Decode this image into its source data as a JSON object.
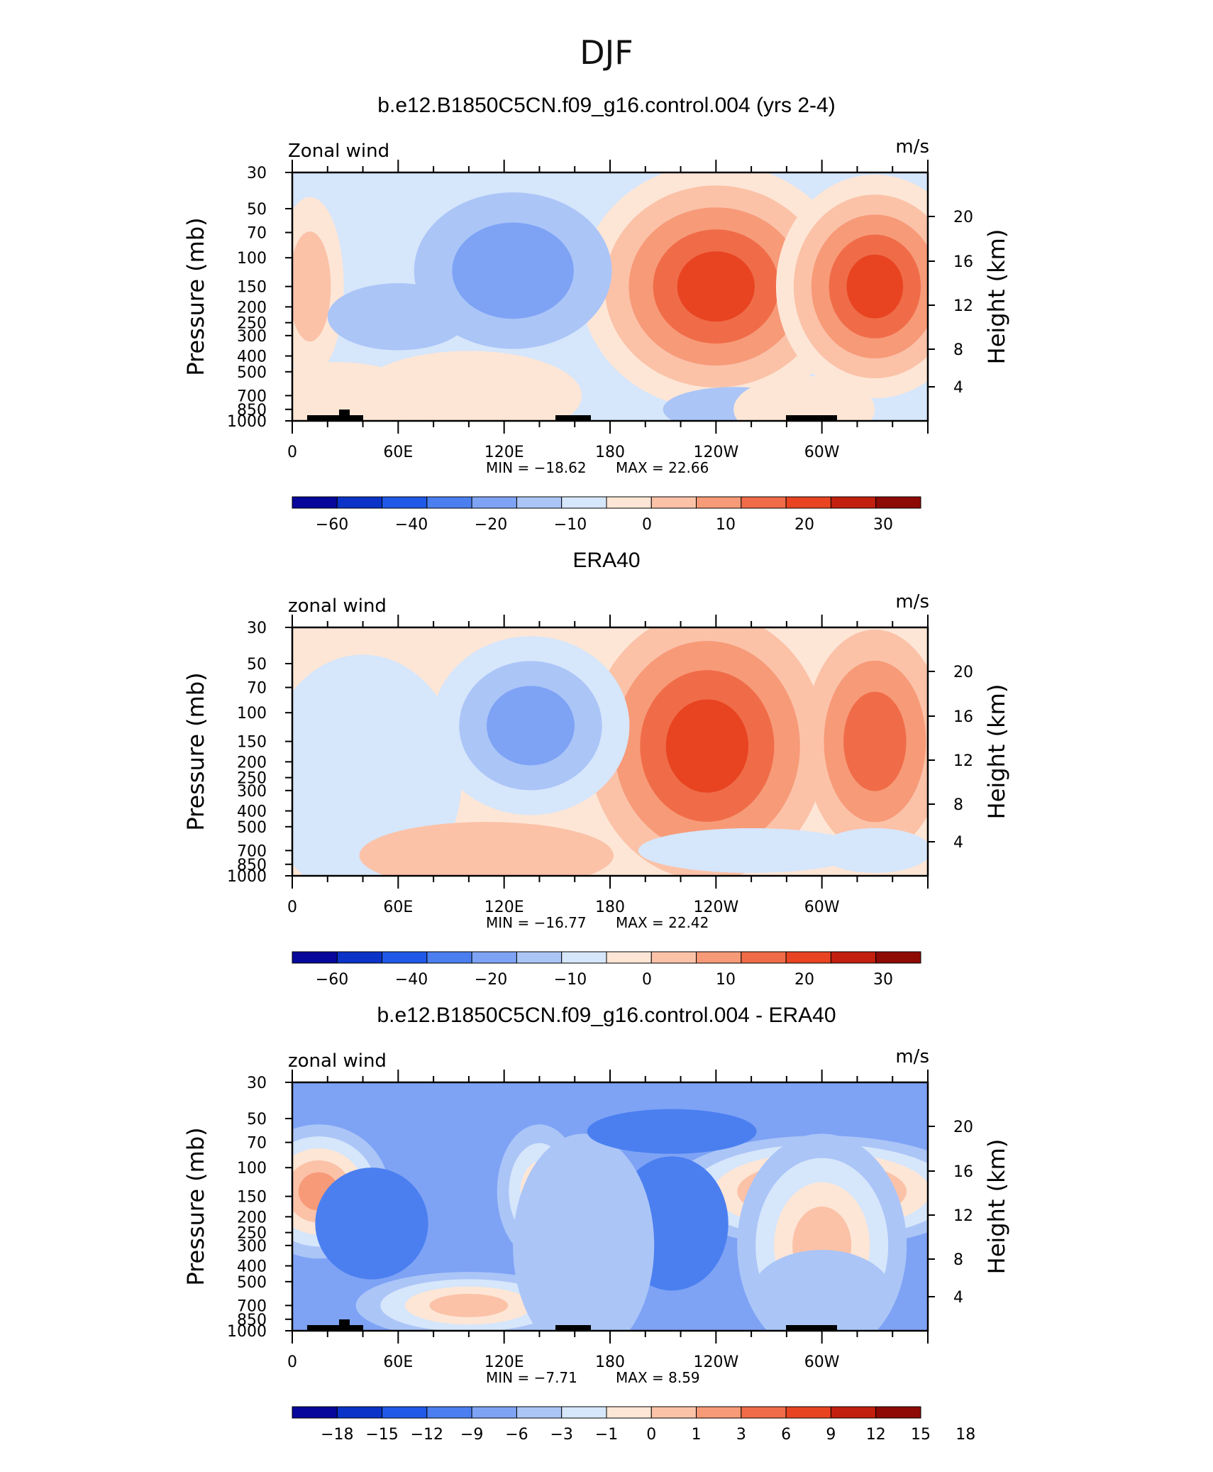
{
  "season_title": "DJF",
  "chart_data": [
    {
      "type": "heatmap",
      "title": "b.e12.B1850C5CN.f09_g16.control.004 (yrs 2-4)",
      "left_label": "Zonal wind",
      "units": "m/s",
      "ylabel": "Pressure (mb)",
      "ylabel2": "Height (km)",
      "xticks": [
        "0",
        "60E",
        "120E",
        "180",
        "120W",
        "60W"
      ],
      "yticks": [
        "30",
        "50",
        "70",
        "100",
        "150",
        "200",
        "250",
        "300",
        "400",
        "500",
        "700",
        "850",
        "1000"
      ],
      "y2ticks": [
        "4",
        "8",
        "12",
        "16",
        "20"
      ],
      "min_text": "MIN = −18.62",
      "max_text": "MAX =  22.66",
      "colorbar_labels": [
        "−60",
        "−40",
        "−20",
        "−10",
        "0",
        "10",
        "20",
        "30"
      ],
      "palette": [
        "#07079b",
        "#0b33c8",
        "#2058e8",
        "#4b7ff0",
        "#7ea3f5",
        "#abc5f7",
        "#d6e6fb",
        "#fde6d6",
        "#fbc2a8",
        "#f79a78",
        "#f06c48",
        "#e84422",
        "#c21f0e",
        "#8e0a05"
      ],
      "min": -18.62,
      "max": 22.66,
      "bg": 6,
      "blobs": [
        {
          "lon": 240,
          "p": 150,
          "w": 48,
          "h": 0.55,
          "lvl": 11
        },
        {
          "lon": 330,
          "p": 150,
          "w": 35,
          "h": 0.5,
          "lvl": 11
        },
        {
          "lon": 125,
          "p": 120,
          "w": 35,
          "h": 0.35,
          "lvl": 4
        },
        {
          "lon": 10,
          "p": 150,
          "w": 12,
          "h": 0.4,
          "lvl": 8
        },
        {
          "lon": 25,
          "p": 700,
          "w": 30,
          "h": 0.15,
          "lvl": 7
        },
        {
          "lon": 100,
          "p": 700,
          "w": 40,
          "h": 0.2,
          "lvl": 7
        },
        {
          "lon": 60,
          "p": 230,
          "w": 25,
          "h": 0.15,
          "lvl": 5
        },
        {
          "lon": 250,
          "p": 850,
          "w": 25,
          "h": 0.1,
          "lvl": 5
        },
        {
          "lon": 290,
          "p": 850,
          "w": 25,
          "h": 0.15,
          "lvl": 7
        }
      ],
      "fill_start": [
        6,
        6,
        6,
        7,
        7,
        7,
        7,
        7,
        7,
        7,
        7
      ]
    },
    {
      "type": "heatmap",
      "title": "ERA40",
      "left_label": "zonal wind",
      "units": "m/s",
      "ylabel": "Pressure (mb)",
      "ylabel2": "Height (km)",
      "xticks": [
        "0",
        "60E",
        "120E",
        "180",
        "120W",
        "60W"
      ],
      "yticks": [
        "30",
        "50",
        "70",
        "100",
        "150",
        "200",
        "250",
        "300",
        "400",
        "500",
        "700",
        "850",
        "1000"
      ],
      "y2ticks": [
        "4",
        "8",
        "12",
        "16",
        "20"
      ],
      "min_text": "MIN = −16.77",
      "max_text": "MAX =  22.42",
      "colorbar_labels": [
        "−60",
        "−40",
        "−20",
        "−10",
        "0",
        "10",
        "20",
        "30"
      ],
      "palette": [
        "#07079b",
        "#0b33c8",
        "#2058e8",
        "#4b7ff0",
        "#7ea3f5",
        "#abc5f7",
        "#d6e6fb",
        "#fde6d6",
        "#fbc2a8",
        "#f79a78",
        "#f06c48",
        "#e84422",
        "#c21f0e",
        "#8e0a05"
      ],
      "min": -16.77,
      "max": 22.42,
      "bg": 7,
      "blobs": [
        {
          "lon": 235,
          "p": 160,
          "w": 42,
          "h": 0.6,
          "lvl": 11
        },
        {
          "lon": 330,
          "p": 150,
          "w": 25,
          "h": 0.5,
          "lvl": 10
        },
        {
          "lon": 135,
          "p": 120,
          "w": 35,
          "h": 0.4,
          "lvl": 4
        },
        {
          "lon": 40,
          "p": 250,
          "w": 35,
          "h": 0.55,
          "lvl": 6
        },
        {
          "lon": 110,
          "p": 750,
          "w": 45,
          "h": 0.15,
          "lvl": 8
        },
        {
          "lon": 260,
          "p": 700,
          "w": 40,
          "h": 0.1,
          "lvl": 6
        },
        {
          "lon": 330,
          "p": 700,
          "w": 20,
          "h": 0.1,
          "lvl": 6
        }
      ],
      "fill_start": [
        7,
        7,
        7,
        7,
        7,
        7,
        7,
        7,
        7,
        7,
        7
      ]
    },
    {
      "type": "heatmap",
      "title": "b.e12.B1850C5CN.f09_g16.control.004 - ERA40",
      "left_label": "zonal wind",
      "units": "m/s",
      "ylabel": "Pressure (mb)",
      "ylabel2": "Height (km)",
      "xticks": [
        "0",
        "60E",
        "120E",
        "180",
        "120W",
        "60W"
      ],
      "yticks": [
        "30",
        "50",
        "70",
        "100",
        "150",
        "200",
        "250",
        "300",
        "400",
        "500",
        "700",
        "850",
        "1000"
      ],
      "y2ticks": [
        "4",
        "8",
        "12",
        "16",
        "20"
      ],
      "min_text": "MIN =   −7.71",
      "max_text": "MAX =    8.59",
      "colorbar_labels": [
        "−18",
        "−15",
        "−12",
        "−9",
        "−6",
        "−3",
        "−1",
        "0",
        "1",
        "3",
        "6",
        "9",
        "12",
        "15",
        "18"
      ],
      "palette": [
        "#07079b",
        "#0b33c8",
        "#2058e8",
        "#4b7ff0",
        "#7ea3f5",
        "#abc5f7",
        "#d6e6fb",
        "#fde6d6",
        "#fbc2a8",
        "#f79a78",
        "#f06c48",
        "#e84422",
        "#c21f0e",
        "#8e0a05"
      ],
      "min": -7.71,
      "max": 8.59,
      "bg": 4,
      "blobs": [
        {
          "lon": 300,
          "p": 140,
          "w": 55,
          "h": 0.25,
          "lvl": 10
        },
        {
          "lon": 15,
          "p": 140,
          "w": 25,
          "h": 0.3,
          "lvl": 9
        },
        {
          "lon": 140,
          "p": 140,
          "w": 15,
          "h": 0.3,
          "lvl": 7
        },
        {
          "lon": 215,
          "p": 220,
          "w": 20,
          "h": 0.3,
          "lvl": 3
        },
        {
          "lon": 45,
          "p": 220,
          "w": 20,
          "h": 0.25,
          "lvl": 3
        },
        {
          "lon": 100,
          "p": 700,
          "w": 40,
          "h": 0.15,
          "lvl": 8
        },
        {
          "lon": 300,
          "p": 300,
          "w": 30,
          "h": 0.5,
          "lvl": 8
        },
        {
          "lon": 165,
          "p": 300,
          "w": 25,
          "h": 0.5,
          "lvl": 5
        },
        {
          "lon": 215,
          "p": 60,
          "w": 30,
          "h": 0.1,
          "lvl": 3
        },
        {
          "lon": 300,
          "p": 600,
          "w": 25,
          "h": 0.2,
          "lvl": 5
        }
      ],
      "fill_start": [
        4,
        4,
        5,
        5,
        6,
        7,
        8,
        8,
        9,
        9,
        10
      ]
    }
  ],
  "topography_note_color": "#000000"
}
